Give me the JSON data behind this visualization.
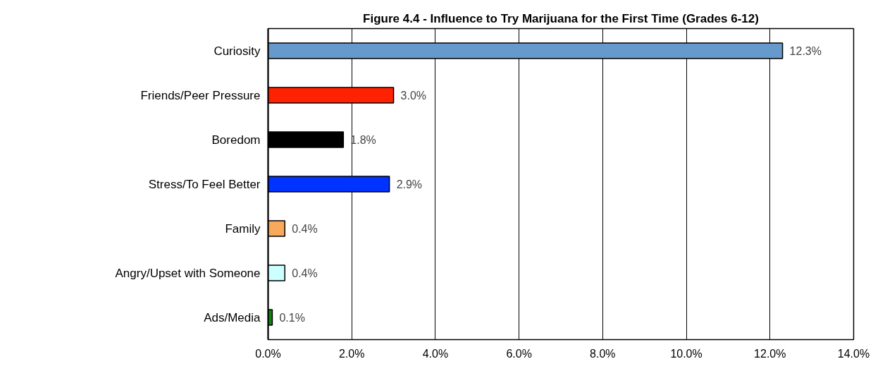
{
  "chart_data": {
    "type": "bar",
    "orientation": "horizontal",
    "title": "Figure 4.4 - Influence to Try Marijuana for the First Time (Grades 6-12)",
    "categories": [
      "Curiosity",
      "Friends/Peer Pressure",
      "Boredom",
      "Stress/To Feel Better",
      "Family",
      "Angry/Upset with Someone",
      "Ads/Media"
    ],
    "values": [
      12.3,
      3.0,
      1.8,
      2.9,
      0.4,
      0.4,
      0.1
    ],
    "colors": [
      "#6699cc",
      "#ff2200",
      "#000000",
      "#0033ff",
      "#f9a95c",
      "#ccffff",
      "#118811"
    ],
    "value_labels": [
      "12.3%",
      "3.0%",
      "1.8%",
      "2.9%",
      "0.4%",
      "0.4%",
      "0.1%"
    ],
    "xlim": [
      0,
      14
    ],
    "xticks": [
      {
        "value": 0,
        "label": "0.0%"
      },
      {
        "value": 2,
        "label": "2.0%"
      },
      {
        "value": 4,
        "label": "4.0%"
      },
      {
        "value": 6,
        "label": "6.0%"
      },
      {
        "value": 8,
        "label": "8.0%"
      },
      {
        "value": 10,
        "label": "10.0%"
      },
      {
        "value": 12,
        "label": "12.0%"
      },
      {
        "value": 14,
        "label": "14.0%"
      }
    ],
    "grid": "x"
  }
}
